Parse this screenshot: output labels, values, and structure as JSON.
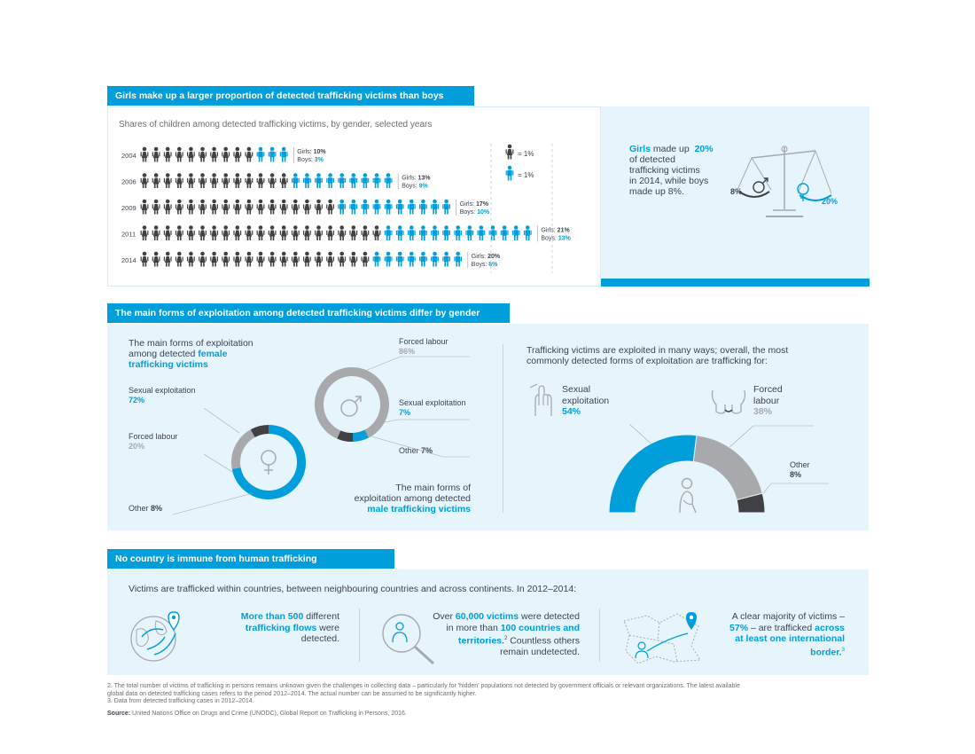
{
  "section1": {
    "banner": "Girls make up a larger proportion of detected trafficking victims than boys",
    "subtitle": "Shares of children among detected trafficking victims, by gender, selected years",
    "legend_girl": "= 1%",
    "legend_boy": "= 1%",
    "label_girls": "Girls:",
    "label_boys": "Boys:",
    "callout": {
      "girls_word": "Girls",
      "made_up": "made up",
      "pct": "20%",
      "rest1": "of detected",
      "rest2": "trafficking victims",
      "rest3": "in 2014, while boys",
      "rest4": "made up 8%."
    },
    "scale_male_value": "8%",
    "scale_female_value": "20%"
  },
  "chart_data": [
    {
      "type": "pictogram",
      "title": "Shares of children among detected trafficking victims, by gender, selected years",
      "categories": [
        "2004",
        "2006",
        "2009",
        "2011",
        "2014"
      ],
      "series": [
        {
          "name": "Girls",
          "values": [
            10,
            13,
            17,
            21,
            20
          ]
        },
        {
          "name": "Boys",
          "values": [
            3,
            9,
            10,
            13,
            8
          ]
        }
      ],
      "colors": {
        "Girls": "#414042",
        "Boys": "#009edb"
      }
    },
    {
      "type": "pie",
      "labels": [
        "Sexual exploitation",
        "Forced labour",
        "Other"
      ],
      "values": [
        72,
        20,
        8
      ],
      "colors": [
        "#009edb",
        "#a7a9ac",
        "#414042"
      ]
    },
    {
      "type": "pie",
      "labels": [
        "Forced labour",
        "Sexual exploitation",
        "Other"
      ],
      "values": [
        86,
        7,
        7
      ],
      "colors": [
        "#a7a9ac",
        "#009edb",
        "#414042"
      ]
    },
    {
      "type": "pie",
      "labels": [
        "Sexual exploitation",
        "Forced labour",
        "Other"
      ],
      "values": [
        54,
        38,
        8
      ],
      "colors": [
        "#009edb",
        "#a7a9ac",
        "#414042"
      ]
    }
  ],
  "section2": {
    "banner": "The main forms of exploitation among detected trafficking victims differ by gender",
    "female_title_1": "The main forms of exploitation",
    "female_title_2": "among detected",
    "female_title_bold1": "female",
    "female_title_bold2": "trafficking victims",
    "f_sexual_label": "Sexual exploitation",
    "f_sexual_val": "72%",
    "f_forced_label": "Forced labour",
    "f_forced_val": "20%",
    "f_other_label": "Other",
    "f_other_val": "8%",
    "m_forced_label": "Forced labour",
    "m_forced_val": "86%",
    "m_sexual_label": "Sexual exploitation",
    "m_sexual_val": "7%",
    "m_other_label": "Other",
    "m_other_val": "7%",
    "male_title_1": "The main forms of",
    "male_title_2": "exploitation among detected",
    "male_title_bold": "male trafficking victims",
    "overall_text_1": "Trafficking victims are exploited in many ways; overall, the most",
    "overall_text_2": "commonly detected forms of exploitation are trafficking for:",
    "o_sexual_1": "Sexual",
    "o_sexual_2": "exploitation",
    "o_sexual_val": "54%",
    "o_forced_1": "Forced",
    "o_forced_2": "labour",
    "o_forced_val": "38%",
    "o_other_label": "Other",
    "o_other_val": "8%"
  },
  "section3": {
    "banner": "No country is immune from human trafficking",
    "intro": "Victims are trafficked within countries, between neighbouring countries and across continents. In 2012–2014:",
    "flows_bold1": "More than 500",
    "flows_text1": "different",
    "flows_bold2": "trafficking flows",
    "flows_text2": "were",
    "flows_text3": "detected.",
    "victims_text1": "Over",
    "victims_bold1": "60,000 victims",
    "victims_text2": "were detected",
    "victims_text3": "in more than",
    "victims_bold2": "100 countries and",
    "victims_bold3": "territories.",
    "victims_sup": "2",
    "victims_text4": "Countless others",
    "victims_text5": "remain undetected.",
    "border_text1": "A clear majority of victims –",
    "border_bold1": "57%",
    "border_text2": "– are trafficked",
    "border_bold2": "across",
    "border_bold3": "at least one international",
    "border_bold4": "border.",
    "border_sup": "3"
  },
  "footnotes": {
    "n2a": "2. The total number of victims of trafficking in persons remains unknown given the challenges in collecting data – particularly for 'hidden' populations not detected by government officials or relevant organizations. The latest available",
    "n2b": "global data on detected trafficking cases refers to the period 2012–2014. The actual number can be assumed to be significantly higher.",
    "n3": "3. Data from detected trafficking cases in 2012–2014.",
    "source_label": "Source:",
    "source_text": "United Nations Office on Drugs and Crime (UNODC), Global Report on Trafficking in Persons, 2016."
  },
  "colors": {
    "accent": "#009edb",
    "dark": "#414042",
    "gray": "#a7a9ac",
    "panel": "#e6f4fb"
  }
}
